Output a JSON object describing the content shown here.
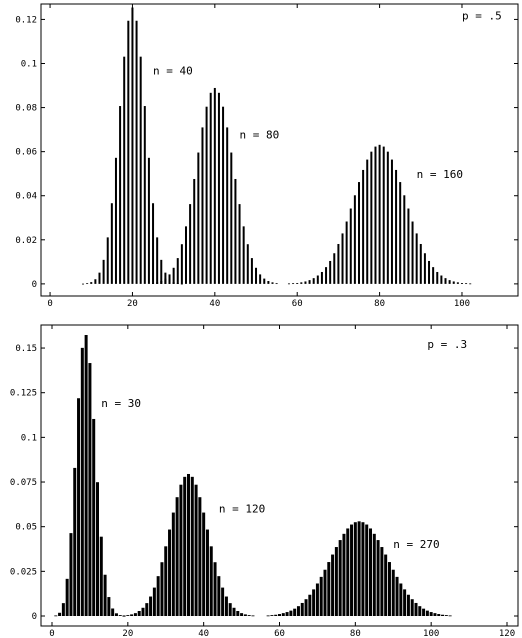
{
  "chart_data": [
    {
      "type": "bar",
      "title": "p = .5",
      "color": "#000000",
      "xlim": [
        -2.2,
        113.6
      ],
      "ylim": [
        -0.0055,
        0.127
      ],
      "xticks": [
        0,
        20,
        40,
        60,
        80,
        100
      ],
      "yticks": [
        0,
        0.02,
        0.04,
        0.06,
        0.08,
        0.1,
        0.12
      ],
      "series": [
        {
          "name": "n = 40",
          "color": "#000000",
          "x": [
            8,
            9,
            10,
            11,
            12,
            13,
            14,
            15,
            16,
            17,
            18,
            19,
            20,
            21,
            22,
            23,
            24,
            25,
            26,
            27,
            28,
            29,
            30,
            31,
            32
          ],
          "values": [
            0.0001,
            0.0003,
            0.0008,
            0.0021,
            0.0051,
            0.0109,
            0.0211,
            0.0366,
            0.0572,
            0.0807,
            0.1031,
            0.1194,
            0.1254,
            0.1194,
            0.1031,
            0.0807,
            0.0572,
            0.0366,
            0.0211,
            0.0109,
            0.0051,
            0.0021,
            0.0008,
            0.0003,
            0.0001
          ]
        },
        {
          "name": "n = 80",
          "color": "#000000",
          "x": [
            25,
            26,
            27,
            28,
            29,
            30,
            31,
            32,
            33,
            34,
            35,
            36,
            37,
            38,
            39,
            40,
            41,
            42,
            43,
            44,
            45,
            46,
            47,
            48,
            49,
            50,
            51,
            52,
            53,
            54,
            55
          ],
          "values": [
            0.0003,
            0.0007,
            0.0013,
            0.0024,
            0.0043,
            0.0073,
            0.0117,
            0.018,
            0.0261,
            0.0362,
            0.0476,
            0.0596,
            0.071,
            0.0804,
            0.0867,
            0.0889,
            0.0867,
            0.0804,
            0.071,
            0.0596,
            0.0476,
            0.0362,
            0.0261,
            0.018,
            0.0117,
            0.0073,
            0.0043,
            0.0024,
            0.0013,
            0.0007,
            0.0003
          ]
        },
        {
          "name": "n = 160",
          "color": "#000000",
          "x": [
            58,
            59,
            60,
            61,
            62,
            63,
            64,
            65,
            66,
            67,
            68,
            69,
            70,
            71,
            72,
            73,
            74,
            75,
            76,
            77,
            78,
            79,
            80,
            81,
            82,
            83,
            84,
            85,
            86,
            87,
            88,
            89,
            90,
            91,
            92,
            93,
            94,
            95,
            96,
            97,
            98,
            99,
            100,
            101,
            102
          ],
          "values": [
            0.0002,
            0.0003,
            0.0004,
            0.0007,
            0.0011,
            0.0017,
            0.0026,
            0.0038,
            0.0054,
            0.0076,
            0.0104,
            0.0139,
            0.0181,
            0.0229,
            0.0283,
            0.0342,
            0.0402,
            0.0462,
            0.0517,
            0.0564,
            0.06,
            0.0623,
            0.0631,
            0.0623,
            0.06,
            0.0564,
            0.0517,
            0.0462,
            0.0402,
            0.0342,
            0.0283,
            0.0229,
            0.0181,
            0.0139,
            0.0104,
            0.0076,
            0.0054,
            0.0038,
            0.0026,
            0.0017,
            0.0011,
            0.0007,
            0.0004,
            0.0003,
            0.0002
          ]
        }
      ]
    },
    {
      "type": "bar",
      "title": "p = .3",
      "color": "#000000",
      "xlim": [
        -2.9,
        122.9
      ],
      "ylim": [
        -0.0056,
        0.1629
      ],
      "xticks": [
        0,
        20,
        40,
        60,
        80,
        100,
        120
      ],
      "yticks": [
        0,
        0.025,
        0.05,
        0.075,
        0.1,
        0.125,
        0.15
      ],
      "series": [
        {
          "name": "n = 30",
          "color": "#000000",
          "x": [
            1,
            2,
            3,
            4,
            5,
            6,
            7,
            8,
            9,
            10,
            11,
            12,
            13,
            14,
            15,
            16,
            17,
            18,
            19
          ],
          "values": [
            0.0003,
            0.0018,
            0.0072,
            0.0208,
            0.0464,
            0.0829,
            0.1219,
            0.1501,
            0.1573,
            0.1416,
            0.1103,
            0.0749,
            0.0444,
            0.0231,
            0.0106,
            0.0042,
            0.0015,
            0.0005,
            0.0001
          ]
        },
        {
          "name": "n = 120",
          "color": "#000000",
          "x": [
            19,
            20,
            21,
            22,
            23,
            24,
            25,
            26,
            27,
            28,
            29,
            30,
            31,
            32,
            33,
            34,
            35,
            36,
            37,
            38,
            39,
            40,
            41,
            42,
            43,
            44,
            45,
            46,
            47,
            48,
            49,
            50,
            51,
            52,
            53
          ],
          "values": [
            0.0003,
            0.0005,
            0.0009,
            0.0016,
            0.0028,
            0.0046,
            0.0072,
            0.0109,
            0.0159,
            0.0223,
            0.0301,
            0.039,
            0.0484,
            0.0579,
            0.0665,
            0.0735,
            0.0779,
            0.0795,
            0.0779,
            0.0735,
            0.0665,
            0.0579,
            0.0484,
            0.039,
            0.0301,
            0.0223,
            0.0159,
            0.0109,
            0.0072,
            0.0046,
            0.0028,
            0.0016,
            0.0009,
            0.0005,
            0.0003
          ]
        },
        {
          "name": "n = 270",
          "color": "#000000",
          "x": [
            57,
            58,
            59,
            60,
            61,
            62,
            63,
            64,
            65,
            66,
            67,
            68,
            69,
            70,
            71,
            72,
            73,
            74,
            75,
            76,
            77,
            78,
            79,
            80,
            81,
            82,
            83,
            84,
            85,
            86,
            87,
            88,
            89,
            90,
            91,
            92,
            93,
            94,
            95,
            96,
            97,
            98,
            99,
            100,
            101,
            102,
            103,
            104,
            105
          ],
          "values": [
            0.0003,
            0.0005,
            0.0007,
            0.0011,
            0.0016,
            0.0022,
            0.003,
            0.0041,
            0.0055,
            0.0073,
            0.0094,
            0.0119,
            0.0149,
            0.0182,
            0.0219,
            0.0259,
            0.0302,
            0.0344,
            0.0386,
            0.0425,
            0.046,
            0.049,
            0.0512,
            0.0525,
            0.053,
            0.0525,
            0.0512,
            0.049,
            0.046,
            0.0425,
            0.0386,
            0.0344,
            0.0302,
            0.0259,
            0.0219,
            0.0182,
            0.0149,
            0.0119,
            0.0094,
            0.0073,
            0.0055,
            0.0041,
            0.003,
            0.0022,
            0.0016,
            0.0011,
            0.0007,
            0.0005,
            0.0003
          ]
        }
      ]
    }
  ]
}
